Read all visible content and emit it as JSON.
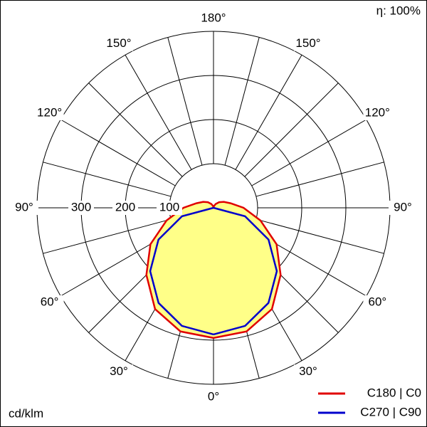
{
  "chart_data": {
    "type": "polar",
    "unit_label": "cd/klm",
    "efficiency_label": "η: 100%",
    "angles": [
      0,
      15,
      30,
      45,
      60,
      75,
      90,
      105,
      120,
      135,
      150,
      165,
      180
    ],
    "series": [
      {
        "name": "C180 | C0",
        "color": "#e00000",
        "values": [
          295,
          290,
          265,
          215,
          165,
          110,
          68,
          40,
          27,
          18,
          10,
          4,
          0
        ]
      },
      {
        "name": "C270 | C90",
        "color": "#0000cc",
        "values": [
          287,
          277,
          249,
          203,
          144,
          74,
          0,
          0,
          0,
          0,
          0,
          0,
          0
        ]
      }
    ],
    "fill_color": "#ffff88",
    "rlim": [
      0,
      400
    ],
    "rticks": [
      100,
      200,
      300
    ],
    "angle_ticks": [
      {
        "value": 0,
        "label": "0°"
      },
      {
        "value": 30,
        "label": "30°"
      },
      {
        "value": 60,
        "label": "60°"
      },
      {
        "value": 90,
        "label": "90°"
      },
      {
        "value": 120,
        "label": "120°"
      },
      {
        "value": 150,
        "label": "150°"
      },
      {
        "value": 180,
        "label": "180°"
      }
    ]
  }
}
